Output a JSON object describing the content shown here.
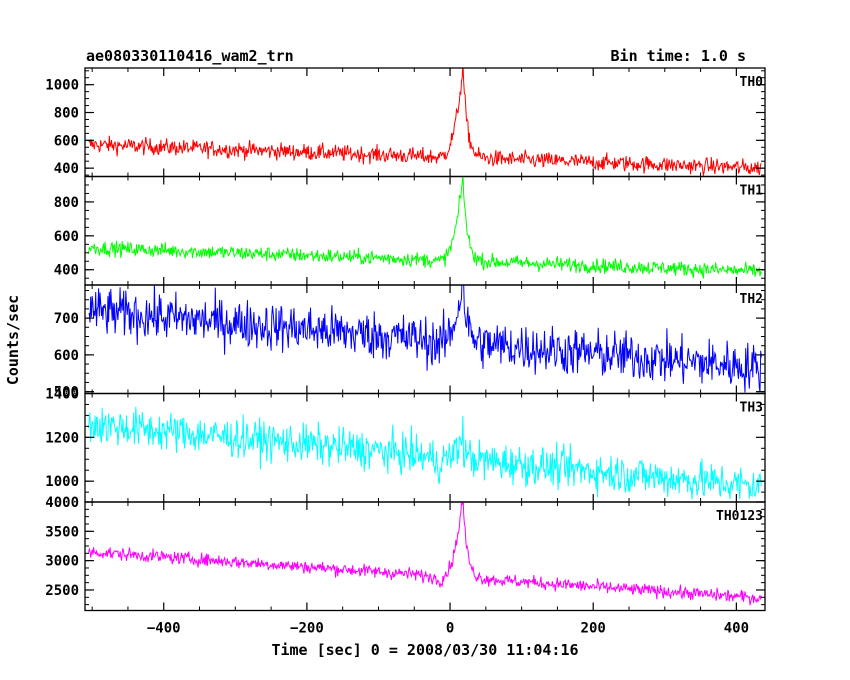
{
  "header": {
    "left_title": "ae080330110416_wam2_trn",
    "right_title": "Bin time: 1.0 s"
  },
  "axes": {
    "xlabel": "Time [sec] 0 = 2008/03/30 11:04:16",
    "ylabel": "Counts/sec"
  },
  "chart_data": {
    "type": "line",
    "title": "ae080330110416_wam2_trn",
    "bin_time": "Bin time: 1.0 s",
    "xlabel": "Time [sec] 0 = 2008/03/30 11:04:16",
    "ylabel": "Counts/sec",
    "xlim": [
      -510,
      440
    ],
    "xticks": [
      -400,
      -200,
      0,
      200,
      400
    ],
    "grid": false,
    "panels": [
      {
        "name": "TH0",
        "color": "#ff0000",
        "ylim": [
          340,
          1120
        ],
        "yticks": [
          400,
          600,
          800,
          1000
        ],
        "y_at_start": 570,
        "y_at_end": 400,
        "pre_burst_level": 470,
        "burst_peak": 1120,
        "noise_amplitude": 30
      },
      {
        "name": "TH1",
        "color": "#00ff00",
        "ylim": [
          310,
          950
        ],
        "yticks": [
          400,
          600,
          800
        ],
        "y_at_start": 530,
        "y_at_end": 390,
        "pre_burst_level": 440,
        "burst_peak": 940,
        "noise_amplitude": 22
      },
      {
        "name": "TH2",
        "color": "#0000ff",
        "ylim": [
          495,
          790
        ],
        "yticks": [
          500,
          600,
          700
        ],
        "y_at_start": 720,
        "y_at_end": 565,
        "pre_burst_level": 610,
        "burst_peak": 790,
        "noise_amplitude": 33
      },
      {
        "name": "TH3",
        "color": "#00ffff",
        "ylim": [
          905,
          1400
        ],
        "yticks": [
          1000,
          1200,
          1400
        ],
        "y_at_start": 1260,
        "y_at_end": 975,
        "pre_burst_level": 1040,
        "burst_peak": 1160,
        "noise_amplitude": 45
      },
      {
        "name": "TH0123",
        "color": "#ff00ff",
        "ylim": [
          2150,
          4000
        ],
        "yticks": [
          2500,
          3000,
          3500,
          4000
        ],
        "y_at_start": 3150,
        "y_at_end": 2360,
        "pre_burst_level": 2550,
        "burst_peak": 4000,
        "noise_amplitude": 55
      }
    ],
    "burst": {
      "start": -20,
      "peak_time": 18,
      "decay_end": 50
    }
  }
}
